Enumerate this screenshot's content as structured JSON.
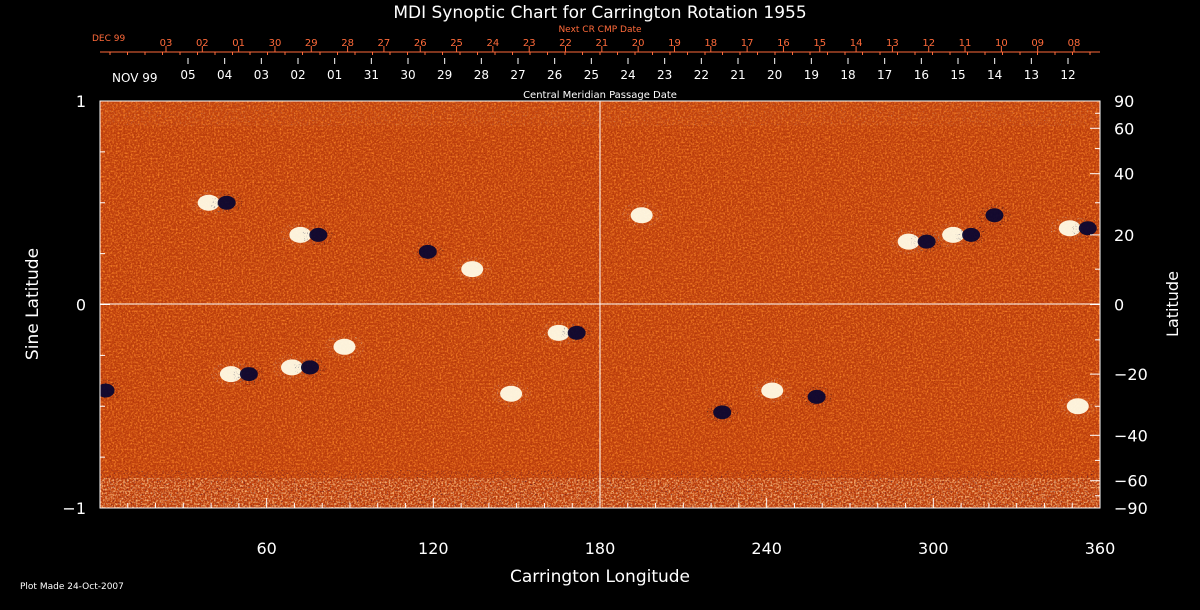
{
  "chart_data": {
    "type": "heatmap",
    "title": "MDI Synoptic Chart for Carrington Rotation 1955",
    "next_cr_label": "Next CR CMP Date",
    "next_cr_month": "DEC 99",
    "next_cr_ticks": [
      "03",
      "02",
      "01",
      "30",
      "29",
      "28",
      "27",
      "26",
      "25",
      "24",
      "23",
      "22",
      "21",
      "20",
      "19",
      "18",
      "17",
      "16",
      "15",
      "14",
      "13",
      "12",
      "11",
      "10",
      "09",
      "08"
    ],
    "cmp_month": "NOV 99",
    "cmp_ticks": [
      "05",
      "04",
      "03",
      "02",
      "01",
      "31",
      "30",
      "29",
      "28",
      "27",
      "26",
      "25",
      "24",
      "23",
      "22",
      "21",
      "20",
      "19",
      "18",
      "17",
      "16",
      "15",
      "14",
      "13",
      "12"
    ],
    "cmp_label": "Central Meridian Passage Date",
    "xlabel": "Carrington Longitude",
    "xlim": [
      0,
      360
    ],
    "xticks": [
      60,
      120,
      180,
      240,
      300,
      360
    ],
    "ylabel_left": "Sine Latitude",
    "ylim": [
      -1,
      1
    ],
    "yticks_left": [
      "1",
      "0",
      "−1"
    ],
    "ylabel_right": "Latitude",
    "yticks_right": [
      "90",
      "60",
      "40",
      "20",
      "0",
      "−20",
      "−40",
      "−60",
      "−90"
    ],
    "footer": "Plot Made 24-Oct-2007",
    "colors": {
      "background_field": "#c2410c",
      "positive": "#fffbe6",
      "negative": "#0b0630",
      "text_orange": "#ff6a3a"
    },
    "active_regions": [
      {
        "lon": 42,
        "lat": 30,
        "pol": "bipolar"
      },
      {
        "lon": 75,
        "lat": 20,
        "pol": "bipolar"
      },
      {
        "lon": 118,
        "lat": 15,
        "pol": "negative"
      },
      {
        "lon": 134,
        "lat": 10,
        "pol": "positive"
      },
      {
        "lon": 88,
        "lat": -12,
        "pol": "positive"
      },
      {
        "lon": 72,
        "lat": -18,
        "pol": "bipolar"
      },
      {
        "lon": 50,
        "lat": -20,
        "pol": "bipolar"
      },
      {
        "lon": 148,
        "lat": -26,
        "pol": "positive"
      },
      {
        "lon": 168,
        "lat": -8,
        "pol": "bipolar"
      },
      {
        "lon": 195,
        "lat": 26,
        "pol": "positive"
      },
      {
        "lon": 294,
        "lat": 18,
        "pol": "bipolar"
      },
      {
        "lon": 310,
        "lat": 20,
        "pol": "bipolar"
      },
      {
        "lon": 322,
        "lat": 26,
        "pol": "negative"
      },
      {
        "lon": 352,
        "lat": 22,
        "pol": "bipolar"
      },
      {
        "lon": 242,
        "lat": -25,
        "pol": "positive"
      },
      {
        "lon": 258,
        "lat": -27,
        "pol": "negative"
      },
      {
        "lon": 224,
        "lat": -32,
        "pol": "negative"
      },
      {
        "lon": 352,
        "lat": -30,
        "pol": "positive"
      },
      {
        "lon": 2,
        "lat": -25,
        "pol": "negative"
      }
    ]
  }
}
